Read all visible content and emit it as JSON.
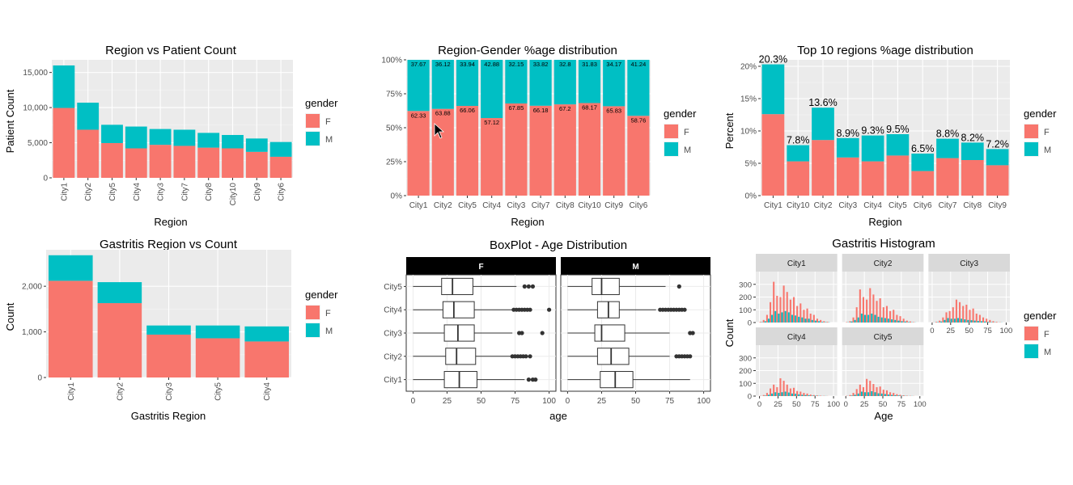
{
  "colors": {
    "F": "#F8766D",
    "M": "#00BFC4",
    "panel": "#EBEBEB",
    "grid": "#FFFFFF",
    "strip": "#D9D9D9",
    "strip_dark": "#000000",
    "text": "#4D4D4D",
    "title": "#000000"
  },
  "legend": {
    "title": "gender",
    "keys": [
      "F",
      "M"
    ]
  },
  "cursor_icon": "arrow-pointer-icon",
  "chart_data": [
    {
      "id": "c1",
      "type": "bar",
      "stacked": true,
      "title": "Region vs Patient Count",
      "xlabel": "Region",
      "ylabel": "Patient Count",
      "categories": [
        "City1",
        "City2",
        "City5",
        "City4",
        "City3",
        "City7",
        "City8",
        "City10",
        "City9",
        "City6"
      ],
      "series": [
        {
          "name": "F",
          "values": [
            9950,
            6850,
            4950,
            4200,
            4700,
            4550,
            4300,
            4200,
            3700,
            3000
          ]
        },
        {
          "name": "M",
          "values": [
            6050,
            3850,
            2600,
            3100,
            2250,
            2300,
            2100,
            1900,
            1900,
            2100
          ]
        }
      ],
      "ylim": [
        0,
        16800
      ],
      "yticks": [
        0,
        5000,
        10000,
        15000
      ],
      "yticklabels": [
        "0",
        "5,000",
        "10,000",
        "15,000"
      ],
      "xtick_rotation": "vertical",
      "grid": true,
      "legend": "right"
    },
    {
      "id": "c2",
      "type": "bar",
      "stacked": true,
      "title": "Region-Gender %age distribution",
      "xlabel": "Region",
      "ylabel": "",
      "categories": [
        "City1",
        "City2",
        "City5",
        "City4",
        "City3",
        "City7",
        "City8",
        "City10",
        "City9",
        "City6"
      ],
      "series": [
        {
          "name": "F",
          "values": [
            62.33,
            63.88,
            66.06,
            57.12,
            67.85,
            66.18,
            67.2,
            68.17,
            65.83,
            58.76
          ],
          "labels": [
            "62.33",
            "63.88",
            "66.06",
            "57.12",
            "67.85",
            "66.18",
            "67.2",
            "68.17",
            "65.83",
            "58.76"
          ]
        },
        {
          "name": "M",
          "values": [
            37.67,
            36.12,
            33.94,
            42.88,
            32.15,
            33.82,
            32.8,
            31.83,
            34.17,
            41.24
          ],
          "labels": [
            "37.67",
            "36.12",
            "33.94",
            "42.88",
            "32.15",
            "33.82",
            "32.8",
            "31.83",
            "34.17",
            "41.24"
          ]
        }
      ],
      "ylim": [
        0,
        100
      ],
      "yticks": [
        0,
        25,
        50,
        75,
        100
      ],
      "yticklabels": [
        "0%",
        "25%",
        "50%",
        "75%",
        "100%"
      ],
      "grid": true,
      "legend": "right"
    },
    {
      "id": "c3",
      "type": "bar",
      "stacked": true,
      "title": "Top 10 regions %age distribution",
      "xlabel": "Region",
      "ylabel": "Percent",
      "categories": [
        "City1",
        "City10",
        "City2",
        "City3",
        "City4",
        "City5",
        "City6",
        "City7",
        "City8",
        "City9"
      ],
      "series": [
        {
          "name": "F",
          "values": [
            12.6,
            5.3,
            8.6,
            5.9,
            5.3,
            6.2,
            3.8,
            5.8,
            5.5,
            4.7
          ]
        },
        {
          "name": "M",
          "values": [
            7.7,
            2.5,
            5.0,
            3.0,
            4.0,
            3.3,
            2.7,
            3.0,
            2.7,
            2.5
          ]
        }
      ],
      "totals": [
        "20.3%",
        "7.8%",
        "13.6%",
        "8.9%",
        "9.3%",
        "9.5%",
        "6.5%",
        "8.8%",
        "8.2%",
        "7.2%"
      ],
      "ylim": [
        0,
        21
      ],
      "yticks": [
        0,
        5,
        10,
        15,
        20
      ],
      "yticklabels": [
        "0%",
        "5%",
        "10%",
        "15%",
        "20%"
      ],
      "grid": true,
      "legend": "right"
    },
    {
      "id": "c4",
      "type": "bar",
      "stacked": true,
      "title": "Gastritis Region vs Count",
      "xlabel": "Gastritis Region",
      "ylabel": "Count",
      "categories": [
        "City1",
        "City2",
        "City3",
        "City5",
        "City4"
      ],
      "series": [
        {
          "name": "F",
          "values": [
            2120,
            1630,
            940,
            860,
            790
          ]
        },
        {
          "name": "M",
          "values": [
            560,
            460,
            200,
            280,
            330
          ]
        }
      ],
      "ylim": [
        0,
        2800
      ],
      "yticks": [
        0,
        1000,
        2000
      ],
      "yticklabels": [
        "0",
        "1,000",
        "2,000"
      ],
      "xtick_rotation": "vertical",
      "grid": true,
      "legend": "right"
    },
    {
      "id": "c5",
      "type": "boxplot",
      "title": "BoxPlot - Age Distribution",
      "xlabel": "age",
      "ylabel": "",
      "facets": [
        "F",
        "M"
      ],
      "categories": [
        "City5",
        "City4",
        "City3",
        "City2",
        "City1"
      ],
      "xlim": [
        -5,
        105
      ],
      "xticks": [
        0,
        25,
        50,
        75,
        100
      ],
      "boxes": {
        "F": [
          {
            "q1": 21,
            "median": 29,
            "q3": 44,
            "wmin": 0,
            "wmax": 76,
            "outliers": [
              82,
              85,
              88
            ]
          },
          {
            "q1": 22,
            "median": 30,
            "q3": 45,
            "wmin": 0,
            "wmax": 73,
            "outliers": [
              74,
              76,
              78,
              80,
              82,
              84,
              86,
              100
            ]
          },
          {
            "q1": 23,
            "median": 33,
            "q3": 45,
            "wmin": 0,
            "wmax": 73,
            "outliers": [
              78,
              80,
              95
            ]
          },
          {
            "q1": 24,
            "median": 32,
            "q3": 46,
            "wmin": 0,
            "wmax": 72,
            "outliers": [
              73,
              75,
              77,
              79,
              81,
              83,
              86
            ]
          },
          {
            "q1": 23,
            "median": 34,
            "q3": 47,
            "wmin": 0,
            "wmax": 82,
            "outliers": [
              85,
              88,
              90
            ]
          }
        ],
        "M": [
          {
            "q1": 18,
            "median": 25,
            "q3": 38,
            "wmin": 0,
            "wmax": 72,
            "outliers": [
              82
            ]
          },
          {
            "q1": 22,
            "median": 30,
            "q3": 38,
            "wmin": 0,
            "wmax": 65,
            "outliers": [
              68,
              70,
              72,
              74,
              76,
              78,
              80,
              82,
              84,
              86
            ]
          },
          {
            "q1": 20,
            "median": 25,
            "q3": 42,
            "wmin": 0,
            "wmax": 75,
            "outliers": [
              90,
              92
            ]
          },
          {
            "q1": 22,
            "median": 32,
            "q3": 45,
            "wmin": 0,
            "wmax": 75,
            "outliers": [
              80,
              82,
              84,
              86,
              88,
              90
            ]
          },
          {
            "q1": 24,
            "median": 35,
            "q3": 48,
            "wmin": 0,
            "wmax": 90,
            "outliers": []
          }
        ]
      }
    },
    {
      "id": "c6",
      "type": "histogram",
      "title": "Gastritis Histogram",
      "xlabel": "Age",
      "ylabel": "Count",
      "facets": [
        "City1",
        "City2",
        "City3",
        "City4",
        "City5"
      ],
      "xlim": [
        -5,
        105
      ],
      "xticks": [
        0,
        25,
        50,
        75,
        100
      ],
      "ylim": [
        0,
        400
      ],
      "yticks": [
        0,
        100,
        200,
        300
      ],
      "bins": {
        "City1": {
          "F": [
            5,
            20,
            60,
            160,
            320,
            210,
            200,
            290,
            240,
            180,
            200,
            130,
            150,
            100,
            110,
            70,
            60,
            30,
            20,
            10,
            5
          ],
          "M": [
            3,
            10,
            30,
            60,
            90,
            70,
            80,
            90,
            80,
            60,
            55,
            45,
            40,
            30,
            30,
            20,
            15,
            10,
            5,
            3,
            2
          ]
        },
        "City2": {
          "F": [
            3,
            10,
            40,
            120,
            260,
            200,
            180,
            270,
            220,
            170,
            190,
            120,
            130,
            90,
            100,
            60,
            50,
            30,
            15,
            8,
            3
          ],
          "M": [
            2,
            8,
            20,
            40,
            70,
            60,
            60,
            70,
            60,
            45,
            40,
            35,
            30,
            25,
            20,
            15,
            10,
            8,
            4,
            2,
            1
          ]
        },
        "City3": {
          "F": [
            1,
            5,
            15,
            40,
            80,
            90,
            120,
            180,
            160,
            130,
            140,
            100,
            110,
            70,
            60,
            40,
            30,
            20,
            10,
            5,
            2
          ],
          "M": [
            1,
            3,
            8,
            20,
            35,
            30,
            30,
            35,
            30,
            25,
            20,
            18,
            15,
            12,
            10,
            8,
            5,
            3,
            2,
            1,
            1
          ]
        },
        "City4": {
          "F": [
            2,
            8,
            25,
            60,
            90,
            70,
            140,
            120,
            90,
            60,
            65,
            40,
            35,
            25,
            20,
            12,
            8,
            5,
            3,
            2,
            1
          ],
          "M": [
            1,
            4,
            10,
            20,
            30,
            25,
            30,
            35,
            28,
            20,
            18,
            14,
            10,
            8,
            6,
            4,
            3,
            2,
            1,
            1,
            0
          ]
        },
        "City5": {
          "F": [
            2,
            8,
            25,
            55,
            90,
            70,
            135,
            120,
            95,
            70,
            75,
            50,
            45,
            30,
            25,
            15,
            10,
            6,
            3,
            2,
            1
          ],
          "M": [
            1,
            4,
            10,
            20,
            35,
            30,
            30,
            38,
            30,
            22,
            20,
            16,
            12,
            9,
            7,
            5,
            3,
            2,
            1,
            1,
            0
          ]
        }
      }
    }
  ]
}
